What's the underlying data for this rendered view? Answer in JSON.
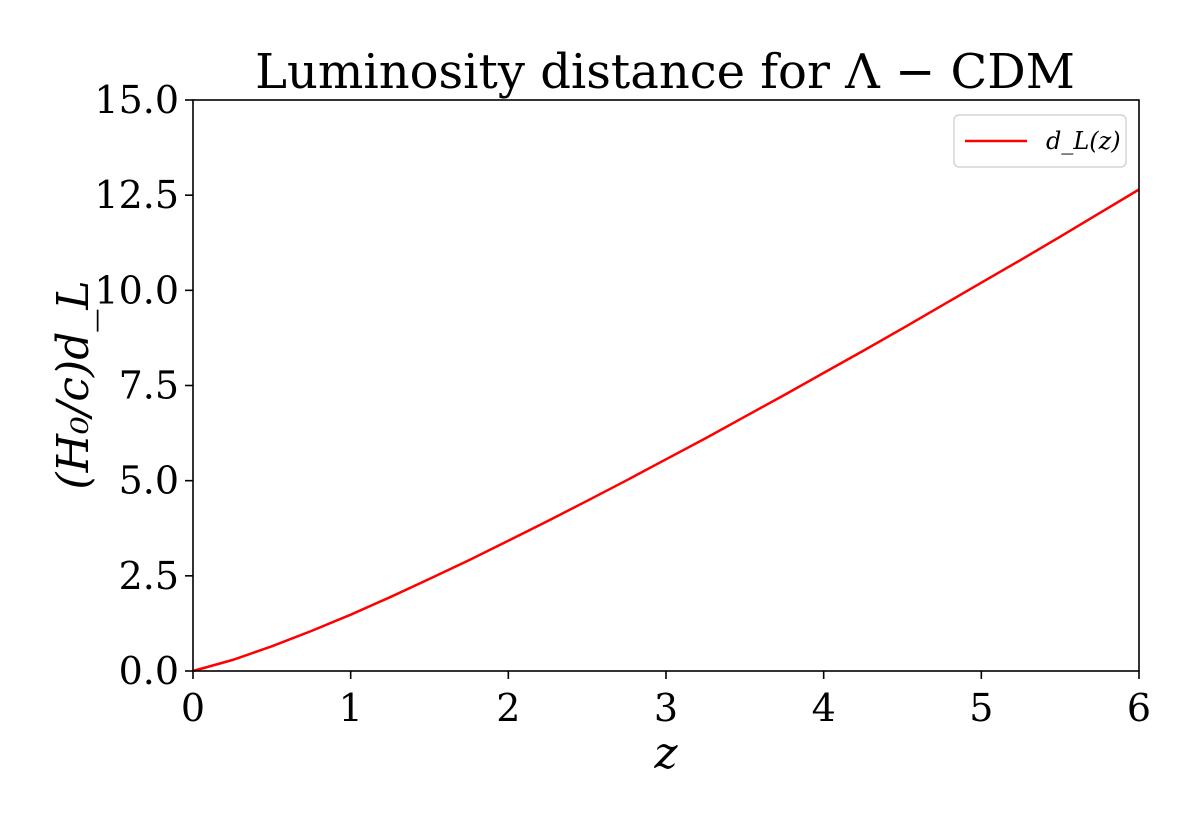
{
  "chart_data": {
    "type": "line",
    "title": "Luminosity distance for Λ − CDM",
    "xlabel": "z",
    "ylabel": "(H₀/c)d_L",
    "xlim": [
      0,
      6
    ],
    "ylim": [
      0,
      15
    ],
    "x_ticks": [
      "0",
      "1",
      "2",
      "3",
      "4",
      "5",
      "6"
    ],
    "y_ticks": [
      "0.0",
      "2.5",
      "5.0",
      "7.5",
      "10.0",
      "12.5",
      "15.0"
    ],
    "grid": false,
    "legend": {
      "position": "top-right",
      "entries": [
        "d_L(z)"
      ]
    },
    "series": [
      {
        "name": "d_L(z)",
        "color": "#ff0000",
        "x": [
          0,
          0.25,
          0.5,
          0.75,
          1.0,
          1.25,
          1.5,
          1.75,
          2.0,
          2.25,
          2.5,
          2.75,
          3.0,
          3.25,
          3.5,
          3.75,
          4.0,
          4.25,
          4.5,
          4.75,
          5.0,
          5.25,
          5.5,
          5.75,
          6.0
        ],
        "y": [
          0.0,
          0.29,
          0.65,
          1.05,
          1.48,
          1.94,
          2.42,
          2.91,
          3.42,
          3.94,
          4.47,
          5.01,
          5.56,
          6.11,
          6.68,
          7.25,
          7.83,
          8.41,
          9.0,
          9.6,
          10.2,
          10.8,
          11.41,
          12.03,
          12.65
        ]
      }
    ]
  }
}
